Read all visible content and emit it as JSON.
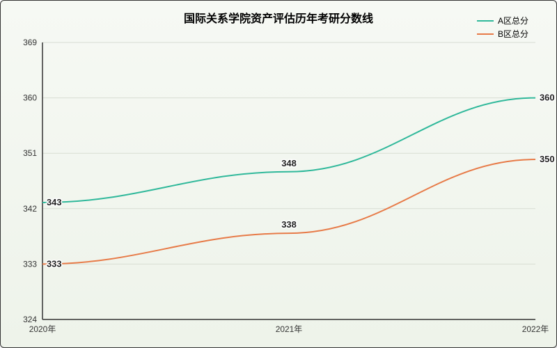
{
  "chart": {
    "type": "line",
    "title": "国际关系学院资产评估历年考研分数线",
    "title_fontsize": 16,
    "background_gradient": [
      "#f6f9f4",
      "#eef3ea"
    ],
    "border_color": "#333333",
    "grid_color": "#d8ddd3",
    "axis_color": "#333333",
    "x": {
      "categories": [
        "2020年",
        "2021年",
        "2022年"
      ],
      "label_fontsize": 12
    },
    "y": {
      "min": 324,
      "max": 369,
      "ticks": [
        324,
        333,
        342,
        351,
        360,
        369
      ],
      "label_fontsize": 12
    },
    "series": [
      {
        "name": "A区总分",
        "color": "#2fb89a",
        "values": [
          343,
          348,
          360
        ],
        "label_anchor": [
          "start",
          "middle",
          "start"
        ]
      },
      {
        "name": "B区总分",
        "color": "#e77a47",
        "values": [
          333,
          338,
          350
        ],
        "label_anchor": [
          "start",
          "middle",
          "start"
        ]
      }
    ],
    "legend": {
      "position": "top-right",
      "fontsize": 12
    },
    "line_width": 2,
    "data_label_fontsize": 13
  }
}
